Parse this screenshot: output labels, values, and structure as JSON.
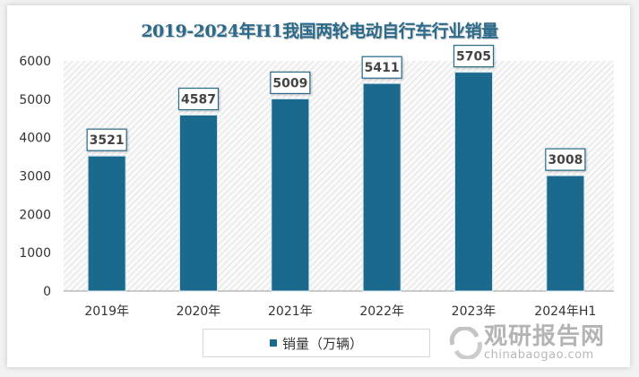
{
  "chart_data": {
    "type": "bar",
    "title": "2019-2024年H1我国两轮电动自行车行业销量",
    "categories": [
      "2019年",
      "2020年",
      "2021年",
      "2022年",
      "2023年",
      "2024年H1"
    ],
    "series": [
      {
        "name": "销量（万辆）",
        "values": [
          3521,
          4587,
          5009,
          5411,
          5705,
          3008
        ]
      }
    ],
    "ylim": [
      0,
      6000
    ],
    "yticks": [
      0,
      1000,
      2000,
      3000,
      4000,
      5000,
      6000
    ],
    "grid": false,
    "data_labels": true,
    "legend_placement": "bottom",
    "bar_color": "#1b6a8e",
    "plot_background": "diagonal-hatch light gray"
  },
  "watermark": {
    "name": "观研报告网",
    "url": "chinabaogao.com"
  }
}
